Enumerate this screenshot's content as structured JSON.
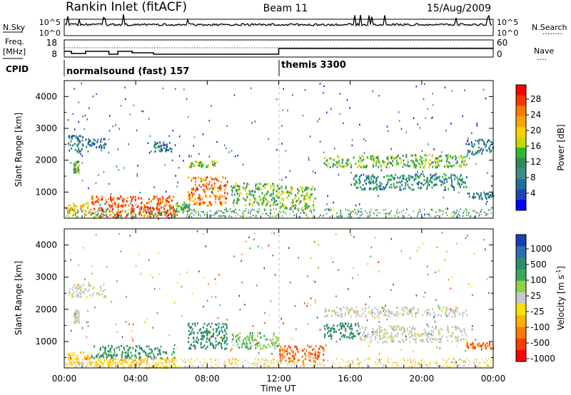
{
  "header": {
    "station": "Rankin Inlet (fitACF)",
    "beam": "Beam 11",
    "date": "15/Aug/2009"
  },
  "nsky_panel": {
    "left_label": "N.Sky",
    "left_ticks": [
      "10^5",
      "10^0"
    ],
    "right_ticks": [
      "10^5",
      "10^0"
    ],
    "right_label": "N.Search",
    "right_legend": "........"
  },
  "freq_panel": {
    "left_label_1": "Freq.",
    "left_label_2": "[MHz]",
    "left_ticks": [
      "18",
      "8"
    ],
    "right_ticks": [
      "60",
      "0"
    ],
    "right_label": "Nave",
    "right_legend": "....",
    "cpid_label": "CPID"
  },
  "cpid": [
    {
      "label": "normalsound (fast) 157",
      "start_hour": 0
    },
    {
      "label": "themis 3300",
      "start_hour": 12
    }
  ],
  "axes": {
    "ylabel": "Slant Range [km]",
    "yticks": [
      "4000",
      "3000",
      "2000",
      "1000"
    ],
    "xticks": [
      "00:00",
      "04:00",
      "08:00",
      "12:00",
      "16:00",
      "20:00",
      "00:00"
    ],
    "xlabel": "Time UT"
  },
  "power_colorbar": {
    "label": "Power [dB]",
    "ticks": [
      "28",
      "24",
      "20",
      "16",
      "12",
      "8",
      "4"
    ],
    "colors": [
      "#ff0000",
      "#ff3300",
      "#ff7a00",
      "#ffa500",
      "#ffd000",
      "#c8d800",
      "#2eb82e",
      "#2f8a57",
      "#3d8c8c",
      "#1f6f9c",
      "#1f45b0",
      "#0000ff"
    ]
  },
  "velocity_colorbar": {
    "label": "Velocity [m s^-1]",
    "ticks": [
      "1000",
      "500",
      "100",
      "25",
      "-25",
      "-100",
      "-500",
      "-1000"
    ],
    "colors": [
      "#1a3fb5",
      "#2d6db0",
      "#2e8a6a",
      "#3aa85a",
      "#8fd33c",
      "#c8c8c8",
      "#ffe000",
      "#ffb000",
      "#ff7a00",
      "#ff3a00",
      "#ff0000"
    ]
  },
  "chart_data": [
    {
      "type": "heatmap",
      "title": "",
      "xlabel": "",
      "ylabel": "Slant Range [km]",
      "xlim": [
        0,
        24
      ],
      "ylim": [
        180,
        4500
      ],
      "value_label": "Power [dB]",
      "regions": [
        {
          "t0": 1.5,
          "t1": 6.2,
          "r0": 200,
          "r1": 900,
          "value": 26
        },
        {
          "t0": 0.1,
          "t1": 1.5,
          "r0": 300,
          "r1": 700,
          "value": 20
        },
        {
          "t0": 6.2,
          "t1": 7.0,
          "r0": 400,
          "r1": 700,
          "value": 12
        },
        {
          "t0": 6.9,
          "t1": 9.1,
          "r0": 600,
          "r1": 1500,
          "value": 24
        },
        {
          "t0": 9.3,
          "t1": 12.0,
          "r0": 600,
          "r1": 1300,
          "value": 14
        },
        {
          "t0": 12.0,
          "t1": 14.0,
          "r0": 500,
          "r1": 1200,
          "value": 14
        },
        {
          "t0": 14.5,
          "t1": 22.5,
          "r0": 1800,
          "r1": 2200,
          "value": 14
        },
        {
          "t0": 16.0,
          "t1": 22.5,
          "r0": 1100,
          "r1": 1600,
          "value": 9
        },
        {
          "t0": 0.2,
          "t1": 1.0,
          "r0": 2300,
          "r1": 2800,
          "value": 7
        },
        {
          "t0": 1.0,
          "t1": 2.3,
          "r0": 2400,
          "r1": 2700,
          "value": 7
        },
        {
          "t0": 0.5,
          "t1": 0.8,
          "r0": 1600,
          "r1": 2000,
          "value": 12
        },
        {
          "t0": 5.0,
          "t1": 6.0,
          "r0": 2300,
          "r1": 2600,
          "value": 7
        },
        {
          "t0": 22.5,
          "t1": 24.0,
          "r0": 2200,
          "r1": 2700,
          "value": 8
        },
        {
          "t0": 22.5,
          "t1": 24.0,
          "r0": 800,
          "r1": 1000,
          "value": 8
        },
        {
          "t0": 7.0,
          "t1": 8.5,
          "r0": 1800,
          "r1": 2000,
          "value": 14
        }
      ]
    },
    {
      "type": "heatmap",
      "title": "",
      "xlabel": "Time UT",
      "ylabel": "Slant Range [km]",
      "xlim": [
        0,
        24
      ],
      "ylim": [
        180,
        4500
      ],
      "value_label": "Velocity [m s^-1]",
      "regions": [
        {
          "t0": 0.1,
          "t1": 1.5,
          "r0": 300,
          "r1": 700,
          "value": -100
        },
        {
          "t0": 1.5,
          "t1": 6.2,
          "r0": 500,
          "r1": 900,
          "value": 100
        },
        {
          "t0": 1.5,
          "t1": 6.2,
          "r0": 200,
          "r1": 500,
          "value": -100
        },
        {
          "t0": 6.9,
          "t1": 9.1,
          "r0": 800,
          "r1": 1600,
          "value": 200
        },
        {
          "t0": 9.3,
          "t1": 12.0,
          "r0": 800,
          "r1": 1300,
          "value": 50
        },
        {
          "t0": 12.0,
          "t1": 14.5,
          "r0": 400,
          "r1": 900,
          "value": -500
        },
        {
          "t0": 14.5,
          "t1": 16.5,
          "r0": 1100,
          "r1": 1600,
          "value": 200
        },
        {
          "t0": 14.5,
          "t1": 22.5,
          "r0": 1800,
          "r1": 2100,
          "value": 0
        },
        {
          "t0": 16.5,
          "t1": 22.5,
          "r0": 1000,
          "r1": 1500,
          "value": 0
        },
        {
          "t0": 0.2,
          "t1": 2.3,
          "r0": 2400,
          "r1": 2800,
          "value": 0
        },
        {
          "t0": 0.5,
          "t1": 0.8,
          "r0": 1600,
          "r1": 2000,
          "value": 0
        },
        {
          "t0": 22.5,
          "t1": 24.0,
          "r0": 800,
          "r1": 1000,
          "value": -500
        }
      ]
    }
  ]
}
